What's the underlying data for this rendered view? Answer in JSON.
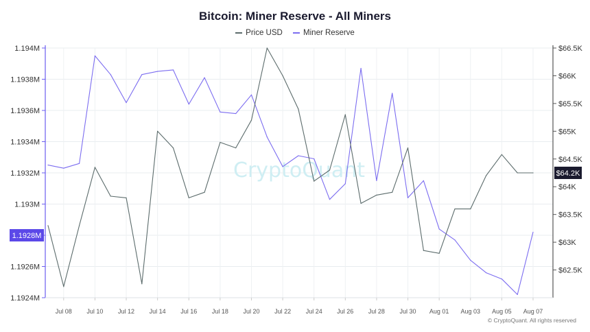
{
  "title": "Bitcoin: Miner Reserve - All Miners",
  "legend": [
    {
      "label": "Price USD",
      "color": "#5b6b6b"
    },
    {
      "label": "Miner Reserve",
      "color": "#7b6cf0"
    }
  ],
  "watermark": "CryptoQuant",
  "credit": "© CryptoQuant. All rights reserved",
  "chart_data": {
    "type": "line",
    "x": [
      "Jul 07",
      "Jul 08",
      "Jul 09",
      "Jul 10",
      "Jul 11",
      "Jul 12",
      "Jul 13",
      "Jul 14",
      "Jul 15",
      "Jul 16",
      "Jul 17",
      "Jul 18",
      "Jul 19",
      "Jul 20",
      "Jul 21",
      "Jul 22",
      "Jul 23",
      "Jul 24",
      "Jul 25",
      "Jul 26",
      "Jul 27",
      "Jul 28",
      "Jul 29",
      "Jul 30",
      "Jul 31",
      "Aug 01",
      "Aug 02",
      "Aug 03",
      "Aug 04",
      "Aug 05",
      "Aug 06",
      "Aug 07"
    ],
    "x_tick_labels": [
      "Jul 08",
      "Jul 10",
      "Jul 12",
      "Jul 14",
      "Jul 16",
      "Jul 18",
      "Jul 20",
      "Jul 22",
      "Jul 24",
      "Jul 26",
      "Jul 28",
      "Jul 30",
      "Aug 01",
      "Aug 03",
      "Aug 05",
      "Aug 07"
    ],
    "series": [
      {
        "name": "Miner Reserve",
        "axis": "left",
        "color": "#7b6cf0",
        "values": [
          1193250,
          1193230,
          1193260,
          1193950,
          1193830,
          1193650,
          1193830,
          1193850,
          1193860,
          1193640,
          1193810,
          1193590,
          1193580,
          1193700,
          1193430,
          1193240,
          1193310,
          1193290,
          1193030,
          1193130,
          1193870,
          1193150,
          1193710,
          1193040,
          1193150,
          1192840,
          1192770,
          1192640,
          1192560,
          1192520,
          1192420,
          1192820
        ]
      },
      {
        "name": "Price USD",
        "axis": "right",
        "color": "#5b6b6b",
        "values": [
          63300,
          62200,
          63300,
          64350,
          63830,
          63800,
          62250,
          65000,
          64700,
          63800,
          63900,
          64800,
          64700,
          65200,
          66500,
          66000,
          65400,
          64100,
          64300,
          65300,
          63700,
          63850,
          63900,
          64700,
          62850,
          62800,
          63600,
          63600,
          64200,
          64580,
          64250,
          64250
        ]
      }
    ],
    "y_left": {
      "min": 1192400,
      "max": 1194000,
      "ticks": [
        1192400,
        1192600,
        1192800,
        1193000,
        1193200,
        1193400,
        1193600,
        1193800,
        1194000
      ],
      "tick_labels": [
        "1.1924M",
        "1.1926M",
        "1.1928M",
        "1.193M",
        "1.1932M",
        "1.1934M",
        "1.1936M",
        "1.1938M",
        "1.194M"
      ],
      "highlight_label": "1.1928M",
      "highlight_color": "#5b48e8"
    },
    "y_right": {
      "min": 62000,
      "max": 66500,
      "ticks": [
        62500,
        63000,
        63500,
        64000,
        64500,
        65000,
        65500,
        66000,
        66500
      ],
      "tick_labels": [
        "$62.5K",
        "$63K",
        "$63.5K",
        "$64K",
        "$64.5K",
        "$65K",
        "$65.5K",
        "$66K",
        "$66.5K"
      ],
      "highlight_label": "$64.2K",
      "highlight_color": "#1a1a2e"
    },
    "grid": true,
    "legend_position": "top-center"
  }
}
